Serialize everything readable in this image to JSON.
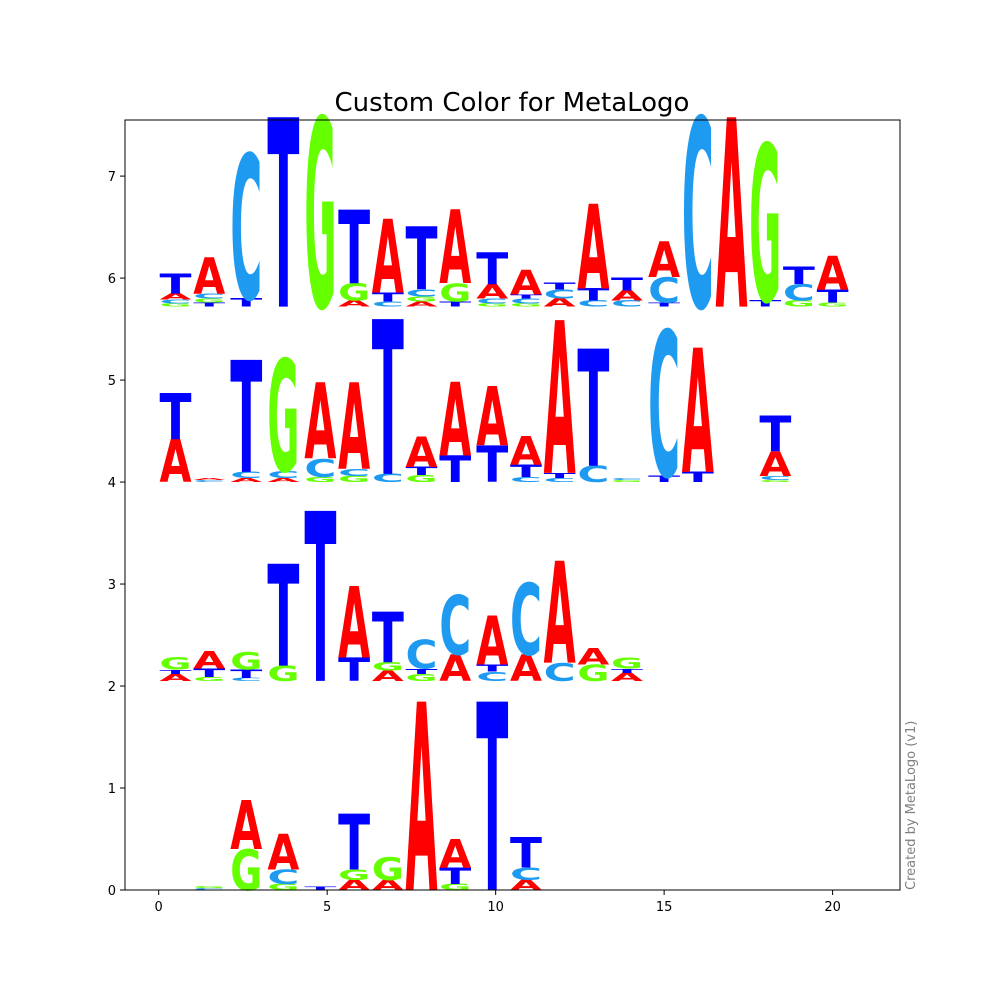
{
  "chart_data": {
    "type": "sequence-logo",
    "title": "Custom Color for MetaLogo",
    "credit": "Created by MetaLogo (v1)",
    "xlim": [
      -1,
      22
    ],
    "ylim": [
      0,
      7.55
    ],
    "x_ticks": [
      0,
      5,
      10,
      15,
      20
    ],
    "y_ticks": [
      0,
      1,
      2,
      3,
      4,
      5,
      6,
      7
    ],
    "colors": {
      "A": "#ff0000",
      "C": "#1e9bf0",
      "G": "#66ff00",
      "T": "#0000ff"
    },
    "rows": [
      {
        "base": 5.72,
        "columns": [
          {
            "x": 0.5,
            "stack": [
              [
                "G",
                0.03
              ],
              [
                "C",
                0.04
              ],
              [
                "A",
                0.06
              ],
              [
                "T",
                0.2
              ]
            ]
          },
          {
            "x": 1.5,
            "stack": [
              [
                "T",
                0.04
              ],
              [
                "G",
                0.04
              ],
              [
                "C",
                0.05
              ],
              [
                "A",
                0.36
              ]
            ]
          },
          {
            "x": 2.6,
            "stack": [
              [
                "T",
                0.08
              ],
              [
                "C",
                1.42
              ]
            ]
          },
          {
            "x": 3.7,
            "stack": [
              [
                "T",
                1.86
              ]
            ]
          },
          {
            "x": 4.8,
            "stack": [
              [
                "G",
                1.86
              ]
            ]
          },
          {
            "x": 5.8,
            "stack": [
              [
                "A",
                0.06
              ],
              [
                "G",
                0.17
              ],
              [
                "T",
                0.72
              ]
            ]
          },
          {
            "x": 6.8,
            "stack": [
              [
                "C",
                0.05
              ],
              [
                "T",
                0.09
              ],
              [
                "A",
                0.72
              ]
            ]
          },
          {
            "x": 7.8,
            "stack": [
              [
                "A",
                0.05
              ],
              [
                "G",
                0.05
              ],
              [
                "C",
                0.07
              ],
              [
                "T",
                0.62
              ]
            ]
          },
          {
            "x": 8.8,
            "stack": [
              [
                "T",
                0.05
              ],
              [
                "G",
                0.18
              ],
              [
                "A",
                0.72
              ]
            ]
          },
          {
            "x": 9.9,
            "stack": [
              [
                "G",
                0.03
              ],
              [
                "C",
                0.05
              ],
              [
                "A",
                0.14
              ],
              [
                "T",
                0.31
              ]
            ]
          },
          {
            "x": 10.9,
            "stack": [
              [
                "G",
                0.03
              ],
              [
                "C",
                0.05
              ],
              [
                "T",
                0.04
              ],
              [
                "A",
                0.24
              ]
            ]
          },
          {
            "x": 11.9,
            "stack": [
              [
                "A",
                0.08
              ],
              [
                "C",
                0.09
              ],
              [
                "T",
                0.07
              ]
            ]
          },
          {
            "x": 12.9,
            "stack": [
              [
                "C",
                0.06
              ],
              [
                "T",
                0.12
              ],
              [
                "A",
                0.83
              ]
            ]
          },
          {
            "x": 13.9,
            "stack": [
              [
                "C",
                0.06
              ],
              [
                "A",
                0.1
              ],
              [
                "T",
                0.13
              ]
            ]
          },
          {
            "x": 15.0,
            "stack": [
              [
                "T",
                0.04
              ],
              [
                "C",
                0.25
              ],
              [
                "A",
                0.35
              ]
            ]
          },
          {
            "x": 16.0,
            "stack": [
              [
                "C",
                1.86
              ]
            ]
          },
          {
            "x": 17.0,
            "stack": [
              [
                "A",
                1.86
              ]
            ]
          },
          {
            "x": 18.0,
            "stack": [
              [
                "T",
                0.06
              ],
              [
                "G",
                1.54
              ]
            ]
          },
          {
            "x": 19.0,
            "stack": [
              [
                "G",
                0.06
              ],
              [
                "C",
                0.16
              ],
              [
                "T",
                0.17
              ]
            ]
          },
          {
            "x": 20.0,
            "stack": [
              [
                "G",
                0.04
              ],
              [
                "T",
                0.13
              ],
              [
                "A",
                0.33
              ]
            ]
          }
        ]
      },
      {
        "base": 4.0,
        "columns": [
          {
            "x": 0.5,
            "stack": [
              [
                "A",
                0.42
              ],
              [
                "T",
                0.45
              ]
            ]
          },
          {
            "x": 1.5,
            "stack": [
              [
                "C",
                0.02
              ],
              [
                "A",
                0.02
              ]
            ]
          },
          {
            "x": 2.6,
            "stack": [
              [
                "A",
                0.04
              ],
              [
                "C",
                0.06
              ],
              [
                "T",
                1.1
              ]
            ]
          },
          {
            "x": 3.7,
            "stack": [
              [
                "A",
                0.04
              ],
              [
                "C",
                0.07
              ],
              [
                "G",
                1.1
              ]
            ]
          },
          {
            "x": 4.8,
            "stack": [
              [
                "G",
                0.05
              ],
              [
                "C",
                0.18
              ],
              [
                "A",
                0.75
              ]
            ]
          },
          {
            "x": 5.8,
            "stack": [
              [
                "G",
                0.06
              ],
              [
                "C",
                0.07
              ],
              [
                "A",
                0.85
              ]
            ]
          },
          {
            "x": 6.8,
            "stack": [
              [
                "C",
                0.08
              ],
              [
                "T",
                1.52
              ]
            ]
          },
          {
            "x": 7.8,
            "stack": [
              [
                "G",
                0.07
              ],
              [
                "T",
                0.08
              ],
              [
                "A",
                0.3
              ]
            ]
          },
          {
            "x": 8.8,
            "stack": [
              [
                "T",
                0.26
              ],
              [
                "A",
                0.72
              ]
            ]
          },
          {
            "x": 9.9,
            "stack": [
              [
                "T",
                0.36
              ],
              [
                "A",
                0.58
              ]
            ]
          },
          {
            "x": 10.9,
            "stack": [
              [
                "C",
                0.05
              ],
              [
                "T",
                0.12
              ],
              [
                "A",
                0.28
              ]
            ]
          },
          {
            "x": 11.9,
            "stack": [
              [
                "C",
                0.04
              ],
              [
                "T",
                0.05
              ],
              [
                "A",
                1.5
              ]
            ]
          },
          {
            "x": 12.9,
            "stack": [
              [
                "C",
                0.16
              ],
              [
                "T",
                1.15
              ]
            ]
          },
          {
            "x": 13.9,
            "stack": [
              [
                "G",
                0.02
              ],
              [
                "C",
                0.02
              ]
            ]
          },
          {
            "x": 15.0,
            "stack": [
              [
                "T",
                0.06
              ],
              [
                "C",
                1.43
              ]
            ]
          },
          {
            "x": 16.0,
            "stack": [
              [
                "T",
                0.1
              ],
              [
                "A",
                1.22
              ]
            ]
          },
          {
            "x": 18.3,
            "stack": [
              [
                "G",
                0.02
              ],
              [
                "C",
                0.04
              ],
              [
                "A",
                0.24
              ],
              [
                "T",
                0.35
              ]
            ]
          }
        ]
      },
      {
        "base": 2.05,
        "columns": [
          {
            "x": 0.5,
            "stack": [
              [
                "A",
                0.07
              ],
              [
                "T",
                0.04
              ],
              [
                "G",
                0.12
              ]
            ]
          },
          {
            "x": 1.5,
            "stack": [
              [
                "G",
                0.04
              ],
              [
                "T",
                0.08
              ],
              [
                "A",
                0.17
              ]
            ]
          },
          {
            "x": 2.6,
            "stack": [
              [
                "C",
                0.03
              ],
              [
                "T",
                0.08
              ],
              [
                "G",
                0.17
              ]
            ]
          },
          {
            "x": 3.7,
            "stack": [
              [
                "G",
                0.15
              ],
              [
                "T",
                1.0
              ]
            ]
          },
          {
            "x": 4.8,
            "stack": [
              [
                "T",
                1.67
              ]
            ]
          },
          {
            "x": 5.8,
            "stack": [
              [
                "T",
                0.23
              ],
              [
                "A",
                0.7
              ]
            ]
          },
          {
            "x": 6.8,
            "stack": [
              [
                "A",
                0.1
              ],
              [
                "G",
                0.08
              ],
              [
                "T",
                0.5
              ]
            ]
          },
          {
            "x": 7.8,
            "stack": [
              [
                "G",
                0.07
              ],
              [
                "T",
                0.05
              ],
              [
                "C",
                0.28
              ]
            ]
          },
          {
            "x": 8.8,
            "stack": [
              [
                "A",
                0.26
              ],
              [
                "C",
                0.58
              ]
            ]
          },
          {
            "x": 9.9,
            "stack": [
              [
                "C",
                0.09
              ],
              [
                "T",
                0.07
              ],
              [
                "A",
                0.48
              ]
            ]
          },
          {
            "x": 10.9,
            "stack": [
              [
                "A",
                0.26
              ],
              [
                "C",
                0.7
              ]
            ]
          },
          {
            "x": 11.9,
            "stack": [
              [
                "C",
                0.18
              ],
              [
                "A",
                1.0
              ]
            ]
          },
          {
            "x": 12.9,
            "stack": [
              [
                "G",
                0.16
              ],
              [
                "A",
                0.16
              ]
            ]
          },
          {
            "x": 13.9,
            "stack": [
              [
                "A",
                0.08
              ],
              [
                "T",
                0.04
              ],
              [
                "G",
                0.11
              ]
            ]
          }
        ]
      },
      {
        "base": 0.0,
        "columns": [
          {
            "x": 1.5,
            "stack": [
              [
                "C",
                0.02
              ],
              [
                "G",
                0.02
              ]
            ]
          },
          {
            "x": 2.6,
            "stack": [
              [
                "G",
                0.4
              ],
              [
                "A",
                0.48
              ]
            ]
          },
          {
            "x": 3.7,
            "stack": [
              [
                "G",
                0.06
              ],
              [
                "C",
                0.14
              ],
              [
                "A",
                0.35
              ]
            ]
          },
          {
            "x": 4.8,
            "stack": [
              [
                "T",
                0.03
              ]
            ]
          },
          {
            "x": 5.8,
            "stack": [
              [
                "A",
                0.1
              ],
              [
                "G",
                0.1
              ],
              [
                "T",
                0.55
              ]
            ]
          },
          {
            "x": 6.8,
            "stack": [
              [
                "A",
                0.1
              ],
              [
                "G",
                0.22
              ]
            ]
          },
          {
            "x": 7.8,
            "stack": [
              [
                "A",
                1.85
              ]
            ]
          },
          {
            "x": 8.8,
            "stack": [
              [
                "G",
                0.06
              ],
              [
                "T",
                0.16
              ],
              [
                "A",
                0.28
              ]
            ]
          },
          {
            "x": 9.9,
            "stack": [
              [
                "T",
                1.85
              ]
            ]
          },
          {
            "x": 10.9,
            "stack": [
              [
                "A",
                0.1
              ],
              [
                "C",
                0.12
              ],
              [
                "T",
                0.3
              ]
            ]
          }
        ]
      }
    ]
  }
}
